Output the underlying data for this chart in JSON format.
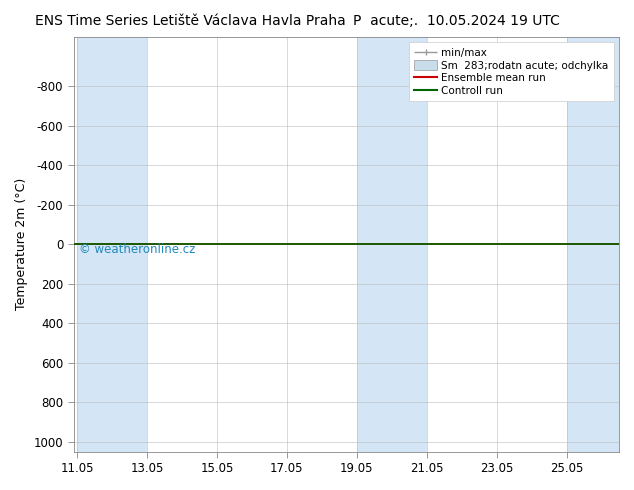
{
  "title_left": "ENS Time Series Letiště Václava Havla Praha",
  "title_right": "P  acute;.  10.05.2024 19 UTC",
  "ylabel": "Temperature 2m (°C)",
  "ylim_top": -1050,
  "ylim_bottom": 1050,
  "yticks": [
    -800,
    -600,
    -400,
    -200,
    0,
    200,
    400,
    600,
    800,
    1000
  ],
  "xtick_labels": [
    "11.05",
    "13.05",
    "15.05",
    "17.05",
    "19.05",
    "21.05",
    "23.05",
    "25.05"
  ],
  "xtick_positions": [
    0,
    2,
    4,
    6,
    8,
    10,
    12,
    14
  ],
  "xmin": -0.1,
  "xmax": 15.5,
  "background_color": "#ffffff",
  "plot_bg_color": "#ffffff",
  "blue_band_color": "#d4e6f5",
  "blue_bands": [
    [
      0.0,
      1.0
    ],
    [
      1.0,
      2.0
    ],
    [
      8.0,
      9.0
    ],
    [
      9.0,
      10.0
    ],
    [
      14.0,
      15.5
    ]
  ],
  "ensemble_mean_color": "#cc0000",
  "control_run_color": "#006600",
  "watermark_text": "© weatheronline.cz",
  "legend_label_minmax": "min/max",
  "legend_label_sm": "Sm  283;rodatn acute; odchylka",
  "legend_label_ens": "Ensemble mean run",
  "legend_label_ctrl": "Controll run",
  "legend_color_minmax": "#999999",
  "legend_color_sm": "#c8dcea",
  "legend_color_ens": "#cc0000",
  "legend_color_ctrl": "#006600",
  "title_fontsize": 10,
  "axis_fontsize": 9,
  "tick_fontsize": 8.5,
  "legend_fontsize": 7.5
}
